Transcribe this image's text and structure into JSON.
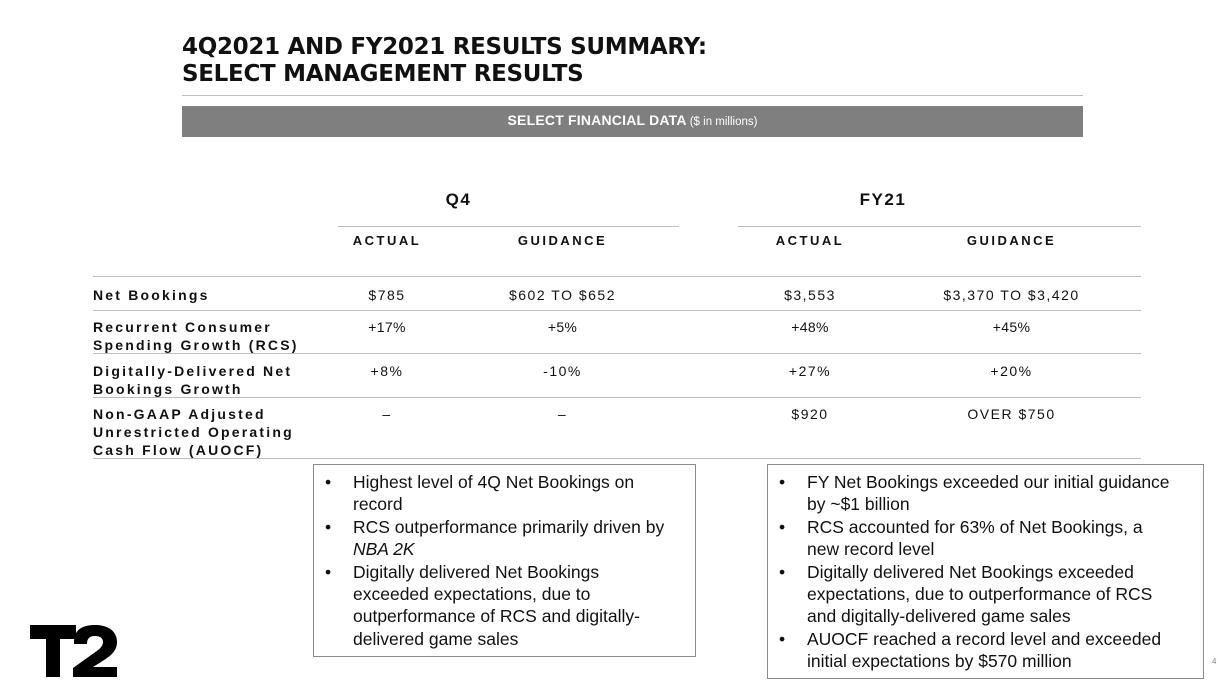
{
  "title": {
    "line1": "4Q2021 AND FY2021 RESULTS SUMMARY:",
    "line2": "SELECT MANAGEMENT RESULTS"
  },
  "banner": {
    "label": "SELECT FINANCIAL DATA",
    "unit": "($ in millions)"
  },
  "table": {
    "groups": [
      "Q4",
      "FY21"
    ],
    "subheaders": [
      "ACTUAL",
      "GUIDANCE",
      "ACTUAL",
      "GUIDANCE"
    ],
    "rows": [
      {
        "label": [
          "Net Bookings"
        ],
        "values": [
          "$785",
          "$602 TO $652",
          "$3,553",
          "$3,370 TO $3,420"
        ]
      },
      {
        "label": [
          "Recurrent Consumer",
          "Spending Growth (RCS)"
        ],
        "values": [
          "+17%",
          "+5%",
          "+48%",
          "+45%"
        ]
      },
      {
        "label": [
          "Digitally-Delivered Net",
          "Bookings Growth"
        ],
        "values": [
          "+8%",
          "-10%",
          "+27%",
          "+20%"
        ]
      },
      {
        "label": [
          "Non-GAAP Adjusted",
          "Unrestricted Operating",
          "Cash Flow (AUOCF)"
        ],
        "values": [
          "–",
          "–",
          "$920",
          "OVER $750"
        ]
      }
    ]
  },
  "notes": {
    "q4": [
      [
        "Highest level of 4Q Net Bookings on",
        "record"
      ],
      [
        "RCS outperformance primarily driven by",
        "NBA 2K"
      ],
      [
        "Digitally delivered Net Bookings",
        "exceeded expectations, due to",
        "outperformance of RCS and digitally-",
        "delivered game sales"
      ]
    ],
    "fy": [
      [
        "FY Net Bookings exceeded our initial guidance",
        "by ~$1 billion"
      ],
      [
        "RCS accounted for 63% of Net Bookings, a",
        "new record level"
      ],
      [
        "Digitally delivered Net Bookings exceeded",
        "expectations, due to outperformance of RCS",
        "and digitally-delivered game sales"
      ],
      [
        "AUOCF reached a record level and exceeded",
        "initial expectations by $570 million"
      ]
    ]
  },
  "bullet": "•",
  "logo_icon": "t2-logo-icon",
  "page_number": "4"
}
